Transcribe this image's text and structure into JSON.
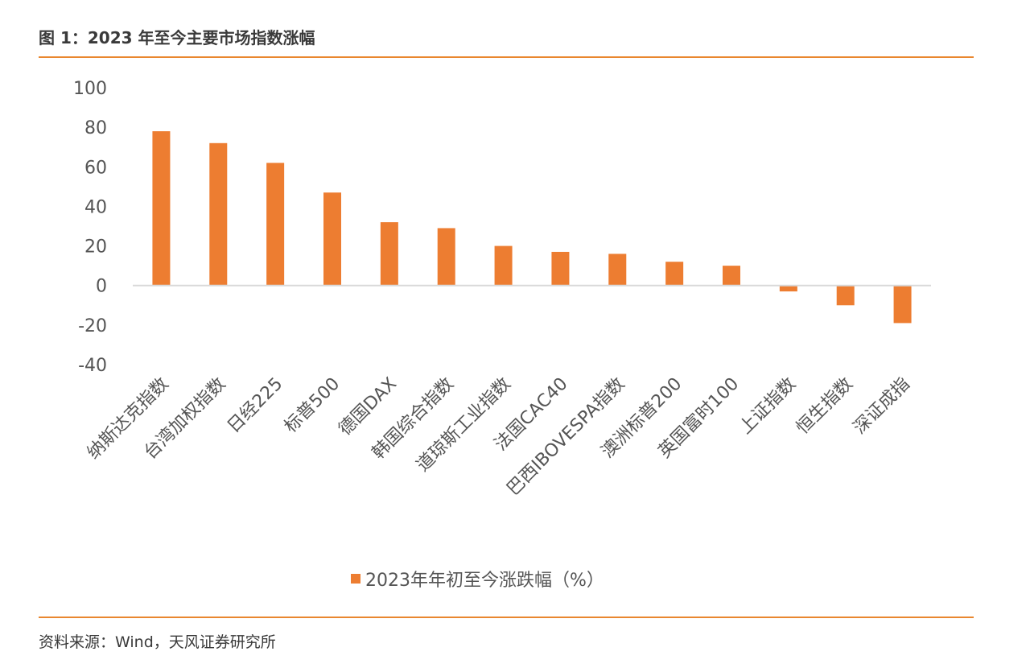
{
  "figure": {
    "title": "图 1：2023 年至今主要市场指数涨幅",
    "source": "资料来源：Wind，天风证券研究所"
  },
  "colors": {
    "accent": "#e9872f",
    "bar": "#ed7d31",
    "axis": "#d9d9d9"
  },
  "chart_data": {
    "type": "bar",
    "categories": [
      "纳斯达克指数",
      "台湾加权指数",
      "日经225",
      "标普500",
      "德国DAX",
      "韩国综合指数",
      "道琼斯工业指数",
      "法国CAC40",
      "巴西IBOVESPA指数",
      "澳洲标普200",
      "英国富时100",
      "上证指数",
      "恒生指数",
      "深证成指"
    ],
    "series": [
      {
        "name": "2023年年初至今涨跌幅（%）",
        "values": [
          78,
          72,
          62,
          47,
          32,
          29,
          20,
          17,
          16,
          12,
          10,
          -3,
          -10,
          -19
        ]
      }
    ],
    "ylim": [
      -40,
      100
    ],
    "yticks": [
      100,
      80,
      60,
      40,
      20,
      0,
      -20,
      -40
    ],
    "grid": false,
    "legend_position": "bottom"
  }
}
